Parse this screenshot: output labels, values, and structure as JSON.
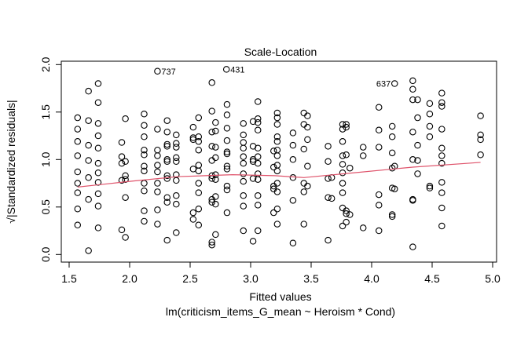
{
  "chart_data": {
    "type": "scatter",
    "title": "Scale-Location",
    "xlabel": "Fitted values",
    "subtitle": "lm(criticism_items_G_mean ~ Heroism * Cond)",
    "ylabel": "√|Standardized residuals|",
    "xlim": [
      1.5,
      5.0
    ],
    "ylim": [
      0.0,
      2.0
    ],
    "xticks": [
      1.5,
      2.0,
      2.5,
      3.0,
      3.5,
      4.0,
      4.5,
      5.0
    ],
    "xtick_labels": [
      "1.5",
      "2.0",
      "2.5",
      "3.0",
      "3.5",
      "4.0",
      "4.5",
      "5.0"
    ],
    "yticks": [
      0.0,
      0.5,
      1.0,
      1.5,
      2.0
    ],
    "ytick_labels": [
      "0.0",
      "0.5",
      "1.0",
      "1.5",
      "2.0"
    ],
    "grid": false,
    "point_color": "#000000",
    "smooth_color": "#DF536B",
    "columns": [
      {
        "x": 1.57,
        "y": [
          1.44,
          1.32,
          1.19,
          1.04,
          0.87,
          0.75,
          0.65,
          0.48,
          0.31
        ]
      },
      {
        "x": 1.66,
        "y": [
          1.72,
          1.41,
          1.15,
          0.99,
          0.81,
          0.58,
          0.04
        ]
      },
      {
        "x": 1.74,
        "y": [
          1.8,
          1.6,
          1.38,
          1.25,
          1.12,
          0.96,
          0.86,
          0.76,
          0.64,
          0.51,
          0.28
        ]
      },
      {
        "x": 1.935,
        "y": [
          1.18,
          1.03,
          0.96,
          0.78,
          0.26
        ]
      },
      {
        "x": 1.965,
        "y": [
          1.43,
          0.98,
          0.83,
          0.79,
          0.6,
          0.18
        ]
      },
      {
        "x": 2.12,
        "y": [
          1.48,
          1.36,
          1.24,
          1.1,
          1.05,
          0.93,
          0.88,
          0.75,
          0.67,
          0.46,
          0.35
        ]
      },
      {
        "x": 2.23,
        "y": [
          1.32,
          1.1,
          1.04,
          0.94,
          0.87,
          0.75,
          0.66,
          0.47,
          0.32
        ]
      },
      {
        "x": 2.31,
        "y": [
          1.41,
          1.29,
          1.16,
          1.14,
          1.0,
          0.98,
          0.83,
          0.8,
          0.6,
          0.55,
          0.15
        ]
      },
      {
        "x": 2.385,
        "y": [
          1.26,
          1.17,
          1.13,
          1.02,
          0.98,
          0.84,
          0.78,
          0.62,
          0.53,
          0.23
        ]
      },
      {
        "x": 2.525,
        "y": [
          1.34,
          1.23,
          1.21,
          0.9,
          0.44,
          0.37
        ]
      },
      {
        "x": 2.57,
        "y": [
          1.44,
          1.24,
          1.19,
          1.1,
          0.94,
          0.88,
          0.75,
          0.65,
          0.48,
          0.31
        ]
      },
      {
        "x": 2.68,
        "y": [
          1.81,
          1.51,
          1.29,
          1.14,
          0.99,
          0.83,
          0.8,
          0.58,
          0.55,
          0.13,
          0.1
        ]
      },
      {
        "x": 2.71,
        "y": [
          1.39,
          1.3,
          1.13,
          1.02,
          0.84,
          0.79,
          0.61,
          0.53,
          0.21
        ]
      },
      {
        "x": 2.805,
        "y": [
          1.58,
          1.47,
          1.33,
          1.2,
          1.08,
          1.06,
          0.93,
          0.9,
          0.72,
          0.68,
          0.44
        ]
      },
      {
        "x": 2.94,
        "y": [
          1.38,
          1.26,
          1.18,
          1.12,
          1.03,
          0.96,
          0.85,
          0.77,
          0.62,
          0.51,
          0.25
        ]
      },
      {
        "x": 3.02,
        "y": [
          1.4,
          1.14,
          1.0,
          0.98,
          0.8,
          0.14
        ]
      },
      {
        "x": 3.06,
        "y": [
          1.61,
          1.43,
          1.39,
          1.31,
          1.12,
          1.03,
          0.96,
          0.85,
          0.79,
          0.62,
          0.52,
          0.25
        ]
      },
      {
        "x": 3.19,
        "y": [
          1.09,
          0.92,
          0.72,
          0.69,
          0.44
        ]
      },
      {
        "x": 3.22,
        "y": [
          1.49,
          1.44,
          1.37,
          1.24,
          1.19,
          1.1,
          1.04,
          0.94,
          0.88,
          0.75,
          0.66,
          0.48,
          0.32
        ]
      },
      {
        "x": 3.35,
        "y": [
          1.28,
          1.15,
          1.0,
          0.81,
          0.57,
          0.12
        ]
      },
      {
        "x": 3.44,
        "y": [
          1.49,
          1.37,
          1.11,
          0.75,
          0.66,
          0.32
        ]
      },
      {
        "x": 3.47,
        "y": [
          1.46,
          1.34,
          1.21,
          0.93,
          0.72
        ]
      },
      {
        "x": 3.64,
        "y": [
          1.14,
          0.98,
          0.8,
          0.6,
          0.15
        ]
      },
      {
        "x": 3.67,
        "y": [
          0.81,
          0.59
        ]
      },
      {
        "x": 3.76,
        "y": [
          1.37,
          1.32,
          1.19,
          1.04,
          0.95,
          0.86,
          0.75,
          0.65,
          0.49,
          0.3
        ]
      },
      {
        "x": 3.79,
        "y": [
          1.37,
          1.34,
          1.05,
          0.46,
          0.43,
          0.34
        ]
      },
      {
        "x": 3.82,
        "y": [
          0.91,
          0.42
        ]
      },
      {
        "x": 3.93,
        "y": [
          1.13,
          1.04,
          0.28
        ]
      },
      {
        "x": 4.06,
        "y": [
          1.55,
          1.31,
          1.13,
          0.63,
          0.52,
          0.25
        ]
      },
      {
        "x": 4.17,
        "y": [
          1.35,
          1.24,
          1.07,
          0.91,
          0.7,
          0.42,
          0.4
        ]
      },
      {
        "x": 4.19,
        "y": [
          0.93,
          0.69
        ]
      },
      {
        "x": 4.34,
        "y": [
          1.83,
          1.74,
          1.63,
          1.29,
          1.0,
          0.58,
          0.57,
          0.08
        ]
      },
      {
        "x": 4.38,
        "y": [
          1.63,
          1.44,
          1.15,
          0.99,
          0.85
        ]
      },
      {
        "x": 4.48,
        "y": [
          1.59,
          1.48,
          1.35,
          1.24,
          0.72,
          0.7
        ]
      },
      {
        "x": 4.58,
        "y": [
          1.7,
          1.6,
          1.56,
          1.32,
          1.12,
          1.04,
          0.96,
          0.76,
          0.65,
          0.49,
          0.3
        ]
      },
      {
        "x": 4.9,
        "y": [
          1.46,
          1.26,
          1.21,
          1.05
        ]
      }
    ],
    "labeled_points": [
      {
        "label": "737",
        "x": 2.23,
        "y": 1.93,
        "side": "right"
      },
      {
        "label": "431",
        "x": 2.8,
        "y": 1.95,
        "side": "right"
      },
      {
        "label": "637",
        "x": 4.19,
        "y": 1.8,
        "side": "left"
      }
    ],
    "smooth_line": {
      "x": [
        1.57,
        2.0,
        2.4,
        2.85,
        3.2,
        3.44,
        3.85,
        4.34,
        4.9
      ],
      "y": [
        0.71,
        0.77,
        0.82,
        0.84,
        0.83,
        0.81,
        0.86,
        0.92,
        0.97
      ]
    }
  }
}
